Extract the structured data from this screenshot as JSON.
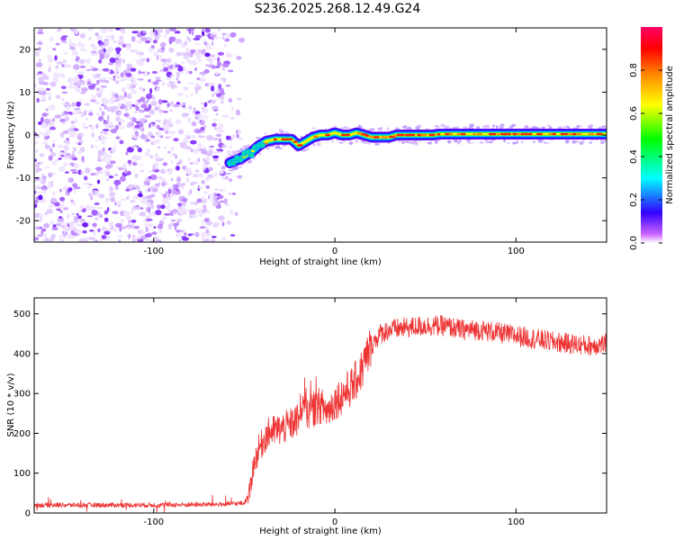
{
  "title": "S236.2025.268.12.49.G24",
  "chart_data": [
    {
      "type": "heatmap",
      "xlabel": "Height of straight line (km)",
      "ylabel": "Frequency (Hz)",
      "xlim": [
        -166,
        150
      ],
      "ylim": [
        -25,
        25
      ],
      "xticks": [
        -100,
        0,
        100
      ],
      "xtick_labels": [
        "-100",
        "0",
        "100"
      ],
      "yticks": [
        -20,
        -10,
        0,
        10,
        20
      ],
      "ytick_labels": [
        "-20",
        "-10",
        "0",
        "10",
        "20"
      ],
      "noise_region_x": [
        -166,
        -55
      ],
      "ridge": {
        "x": [
          -58,
          -52,
          -46,
          -42,
          -38,
          -33,
          -28,
          -24,
          -20,
          -16,
          -12,
          -8,
          -4,
          0,
          4,
          8,
          12,
          16,
          20,
          25,
          30,
          34,
          38,
          42,
          46,
          50,
          54,
          58,
          150
        ],
        "y": [
          -6.5,
          -5.5,
          -4,
          -2.5,
          -1.5,
          -1,
          -1,
          -1,
          -2.5,
          -1.5,
          -0.5,
          0,
          0,
          0.5,
          0,
          0,
          0.5,
          0,
          -0.5,
          -0.5,
          -0.5,
          0,
          0,
          0,
          0,
          0,
          0,
          0.2,
          0.2
        ]
      },
      "colorbar": {
        "label": "Normalized spectral amplitude",
        "range": [
          0,
          1
        ],
        "ticks": [
          0.0,
          0.2,
          0.4,
          0.6,
          0.8
        ],
        "tick_labels": [
          "0.0",
          "0.2",
          "0.4",
          "0.6",
          "0.8"
        ]
      }
    },
    {
      "type": "line",
      "xlabel": "Height of straight line (km)",
      "ylabel": "SNR (10 * v/v)",
      "xlim": [
        -166,
        150
      ],
      "ylim": [
        0,
        540
      ],
      "xticks": [
        -100,
        0,
        100
      ],
      "xtick_labels": [
        "-100",
        "0",
        "100"
      ],
      "yticks": [
        0,
        100,
        200,
        300,
        400,
        500
      ],
      "ytick_labels": [
        "0",
        "100",
        "200",
        "300",
        "400",
        "500"
      ],
      "series": [
        {
          "name": "SNR",
          "color": "#ee3333",
          "x": [
            -166,
            -100,
            -60,
            -50,
            -47,
            -45,
            -42,
            -38,
            -35,
            -30,
            -25,
            -20,
            -17,
            -15,
            -12,
            -8,
            -4,
            0,
            5,
            10,
            15,
            20,
            25,
            30,
            40,
            50,
            60,
            70,
            80,
            100,
            120,
            130,
            140,
            150
          ],
          "y": [
            20,
            20,
            22,
            25,
            50,
            120,
            160,
            195,
            205,
            210,
            220,
            235,
            300,
            250,
            260,
            270,
            255,
            280,
            300,
            320,
            360,
            420,
            450,
            460,
            465,
            470,
            470,
            460,
            460,
            445,
            430,
            425,
            420,
            425
          ]
        }
      ]
    }
  ]
}
